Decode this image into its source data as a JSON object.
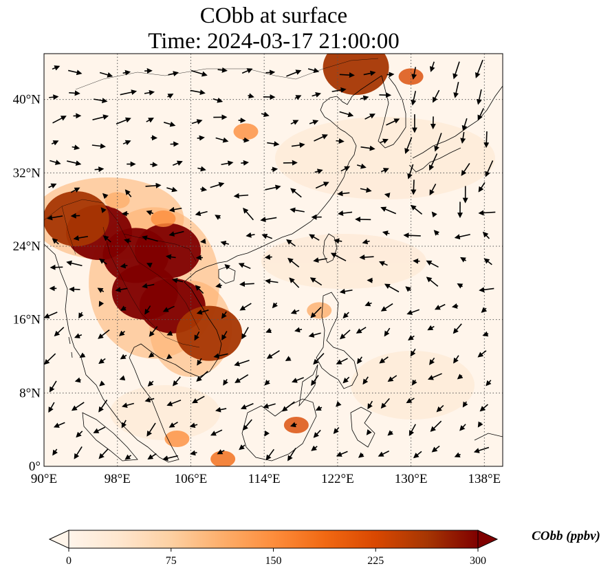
{
  "title": {
    "line1": "CObb at surface",
    "line2": "Time: 2024-03-17 21:00:00"
  },
  "map": {
    "lon_range": [
      90,
      140
    ],
    "lat_range": [
      0,
      45
    ],
    "lon_ticks": [
      "90°E",
      "98°E",
      "106°E",
      "114°E",
      "122°E",
      "130°E",
      "138°E"
    ],
    "lon_tick_values": [
      90,
      98,
      106,
      114,
      122,
      130,
      138
    ],
    "lat_ticks": [
      "0°",
      "8°N",
      "16°N",
      "24°N",
      "32°N",
      "40°N"
    ],
    "lat_tick_values": [
      0,
      8,
      16,
      24,
      32,
      40
    ],
    "grid": "dotted",
    "background_color": "#fff5eb"
  },
  "colorbar": {
    "label": "CObb (ppbv)",
    "ticks": [
      "0",
      "75",
      "150",
      "225",
      "300"
    ],
    "tick_values": [
      0,
      75,
      150,
      225,
      300
    ],
    "range": [
      0,
      300
    ],
    "extend": "both",
    "colormap": [
      "#fff5eb",
      "#fee6ce",
      "#fdd0a2",
      "#fdae6b",
      "#fd8d3c",
      "#f16913",
      "#d94801",
      "#a63603",
      "#7f0000"
    ]
  },
  "plumes": [
    {
      "lon": 96,
      "lat": 25.5,
      "value": 300
    },
    {
      "lon": 100,
      "lat": 23,
      "value": 300
    },
    {
      "lon": 103.5,
      "lat": 23.5,
      "value": 300
    },
    {
      "lon": 101,
      "lat": 19,
      "value": 300
    },
    {
      "lon": 104,
      "lat": 17.5,
      "value": 300
    },
    {
      "lon": 108,
      "lat": 14.5,
      "value": 280
    },
    {
      "lon": 93.5,
      "lat": 27,
      "value": 260
    },
    {
      "lon": 98,
      "lat": 29,
      "value": 120
    },
    {
      "lon": 103,
      "lat": 27,
      "value": 140
    },
    {
      "lon": 124,
      "lat": 43.5,
      "value": 260
    },
    {
      "lon": 130,
      "lat": 42.5,
      "value": 240
    },
    {
      "lon": 117.5,
      "lat": 4.5,
      "value": 220
    },
    {
      "lon": 120,
      "lat": 17,
      "value": 120
    },
    {
      "lon": 104.5,
      "lat": 3,
      "value": 160
    },
    {
      "lon": 109.5,
      "lat": 0.8,
      "value": 200
    },
    {
      "lon": 112,
      "lat": 36.5,
      "value": 160
    }
  ],
  "wind": {
    "arrow_color": "#000000",
    "spacing_deg": 2.6
  }
}
